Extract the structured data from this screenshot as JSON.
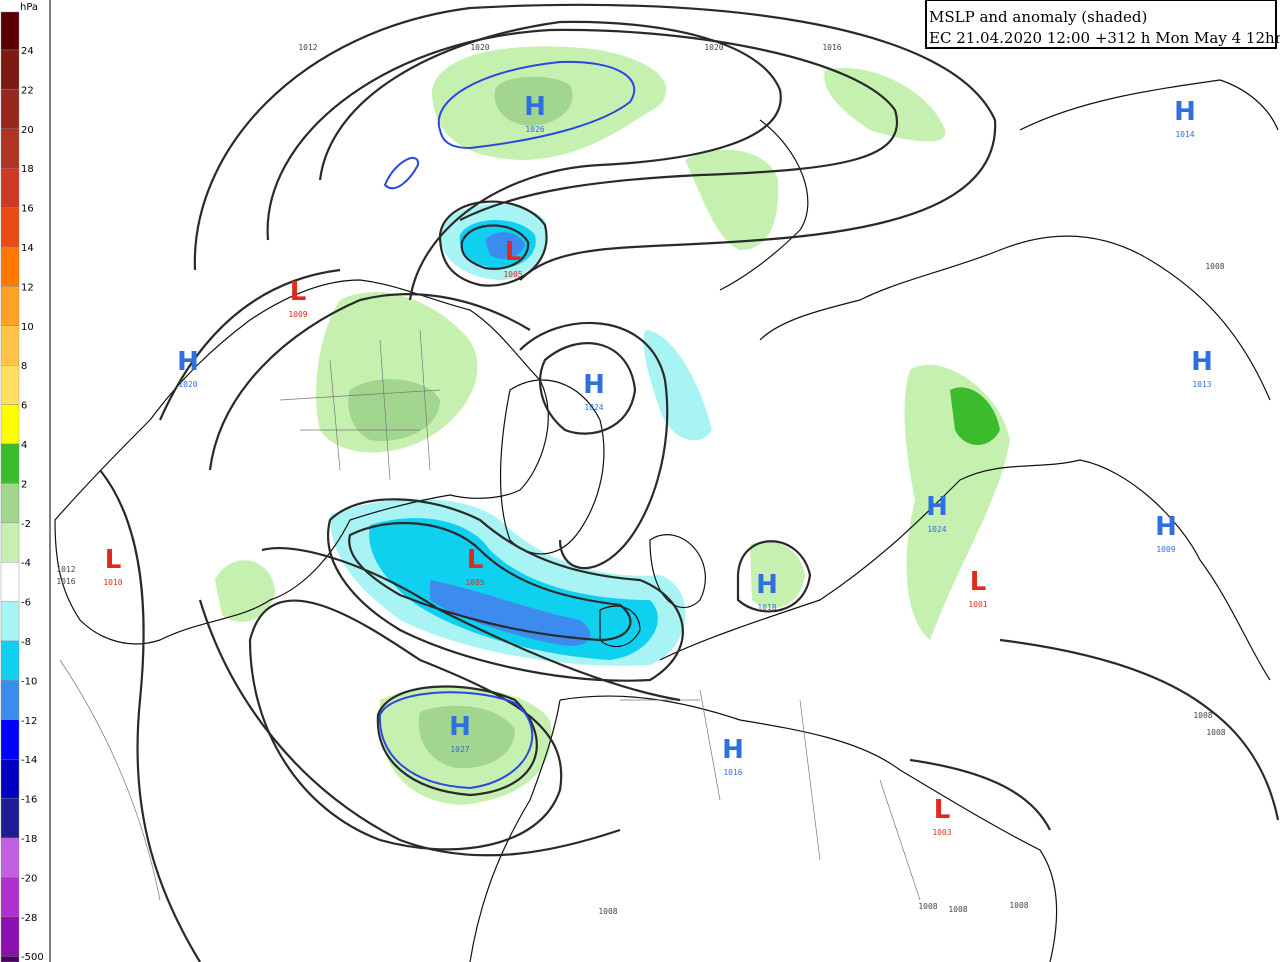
{
  "title": {
    "line1": "MSLP and anomaly (shaded)",
    "line2": "EC 21.04.2020 12:00 +312 h Mon May 4 12hrs"
  },
  "colorbar": {
    "unit": "hPa",
    "labels": [
      24,
      22,
      20,
      18,
      16,
      14,
      12,
      10,
      8,
      6,
      4,
      2,
      -2,
      -4,
      -6,
      -8,
      -10,
      -12,
      -14,
      -16,
      -18,
      -20,
      -28,
      -500
    ],
    "colors": [
      "#5a0000",
      "#7a1a10",
      "#96281c",
      "#b03424",
      "#cc3a22",
      "#ea4a14",
      "#ff7800",
      "#ffa028",
      "#ffc448",
      "#ffe060",
      "#ffff00",
      "#3cbc2c",
      "#a2d68e",
      "#c6f0b0",
      "#ffffff",
      "#a8f4f4",
      "#10d0f0",
      "#3c8cf0",
      "#0000ff",
      "#0000c0",
      "#1c1c96",
      "#c060e0",
      "#b030d0",
      "#8a10b0",
      "#4a0060"
    ]
  },
  "centers": [
    {
      "letter": "H",
      "pressure": 1026
    },
    {
      "letter": "L",
      "pressure": 1005
    },
    {
      "letter": "L",
      "pressure": 1009
    },
    {
      "letter": "H",
      "pressure": 1020
    },
    {
      "letter": "H",
      "pressure": 1024
    },
    {
      "letter": "L",
      "pressure": 1005
    },
    {
      "letter": "L",
      "pressure": 1010
    },
    {
      "letter": "H",
      "pressure": 1018
    },
    {
      "letter": "H",
      "pressure": 1027
    },
    {
      "letter": "H",
      "pressure": 1016
    },
    {
      "letter": "H",
      "pressure": 1014
    },
    {
      "letter": "H",
      "pressure": 1013
    },
    {
      "letter": "H",
      "pressure": 1024
    },
    {
      "letter": "H",
      "pressure": 1009
    },
    {
      "letter": "L",
      "pressure": 1001
    },
    {
      "letter": "L",
      "pressure": 1003
    }
  ],
  "isobar_labels": [
    1012,
    1020,
    1020,
    1016,
    1008,
    1008,
    1008,
    1012,
    1016,
    1008,
    1008,
    1008,
    1008
  ]
}
